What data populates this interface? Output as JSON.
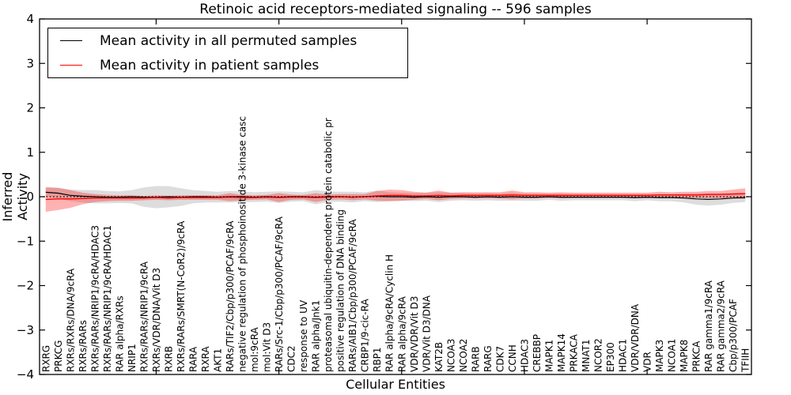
{
  "figure": {
    "title": "Retinoic acid receptors-mediated signaling -- 596 samples",
    "xlabel": "Cellular Entities",
    "ylabel": "Inferred Activity"
  },
  "legend": {
    "position": "upper left",
    "entries": [
      {
        "label": "Mean activity in all permuted samples",
        "color": "#000000"
      },
      {
        "label": "Mean activity in patient samples",
        "color": "#ff0000"
      }
    ]
  },
  "chart_data": {
    "type": "line",
    "title": "Retinoic acid receptors-mediated signaling -- 596 samples",
    "xlabel": "Cellular Entities",
    "ylabel": "Inferred Activity",
    "ylim": [
      -4,
      4
    ],
    "ytick_labels": [
      "4",
      "3",
      "2",
      "1",
      "0",
      "−1",
      "−2",
      "−3",
      "−4"
    ],
    "ytick_values": [
      4,
      3,
      2,
      1,
      0,
      -1,
      -2,
      -3,
      -4
    ],
    "x_major_tick_positions": [
      10,
      20,
      30,
      40,
      50
    ],
    "grid": false,
    "zero_line": true,
    "legend_position": "upper left",
    "categories": [
      "RXRG",
      "PRKCG",
      "RXRs/RXRs/DNA/9cRA",
      "RXRs/RARs",
      "RXRs/RARs/NRIP1/9cRA/HDAC3",
      "RXRs/RARs/NRIP1/9cRA/HDAC1",
      "RAR alpha/RXRs",
      "NRIP1",
      "RXRs/RARs/NRIP1/9cRA",
      "RXRs/VDR/DNA/Vit D3",
      "RXRB",
      "RXRs/RARs/SMRT(N-CoR2)/9cRA",
      "RARA",
      "RXRA",
      "AKT1",
      "RARs/TIF2/Cbp/p300/PCAF/9cRA",
      "negative regulation of phosphoinositide 3-kinase casc",
      "mol:9cRA",
      "mol:Vit D3",
      "RARs/Src-1/Cbp/p300/PCAF/9cRA",
      "CDC2",
      "response to UV",
      "RAR alpha/Jnk1",
      "proteasomal ubiquitin-dependent protein catabolic pr",
      "positive regulation of DNA binding",
      "RARs/AIB1/Cbp/p300/PCAF/9cRA",
      "CRBP1/9-cic-RA",
      "RBP1",
      "RAR alpha/9cRA/Cyclin H",
      "RAR alpha/9cRA",
      "VDR/VDR/Vit D3",
      "VDR/Vit D3/DNA",
      "KAT2B",
      "NCOA3",
      "NCOA2",
      "RARB",
      "RARG",
      "CDK7",
      "CCNH",
      "HDAC3",
      "CREBBP",
      "MAPK1",
      "MAPK14",
      "PRKACA",
      "MNAT1",
      "NCOR2",
      "EP300",
      "HDAC1",
      "VDR/VDR/DNA",
      "VDR",
      "MAPK3",
      "NCOA1",
      "MAPK8",
      "PRKCA",
      "RAR gamma1/9cRA",
      "RAR gamma2/9cRA",
      "Cbp/p300/PCAF",
      "TFIIH"
    ],
    "series": [
      {
        "name": "Mean activity in all permuted samples",
        "color": "#000000",
        "band_color": "rgba(120,120,120,0.25)",
        "values": [
          0.1,
          0.08,
          0.03,
          0.01,
          0.0,
          -0.01,
          -0.01,
          0.0,
          -0.01,
          -0.01,
          0.0,
          -0.01,
          0.0,
          0.0,
          -0.01,
          0.0,
          0.0,
          -0.01,
          0.0,
          -0.01,
          0.0,
          0.0,
          -0.01,
          0.0,
          0.0,
          -0.01,
          0.0,
          0.01,
          0.0,
          0.0,
          -0.01,
          0.0,
          -0.01,
          0.0,
          0.0,
          -0.01,
          0.0,
          -0.01,
          0.0,
          -0.01,
          -0.01,
          0.0,
          -0.01,
          -0.01,
          -0.01,
          -0.01,
          -0.01,
          -0.01,
          -0.02,
          -0.01,
          -0.02,
          -0.02,
          -0.03,
          -0.05,
          -0.06,
          -0.05,
          -0.03,
          -0.02
        ],
        "band_halfwidth": [
          0.1,
          0.12,
          0.13,
          0.14,
          0.15,
          0.14,
          0.13,
          0.15,
          0.22,
          0.25,
          0.24,
          0.2,
          0.15,
          0.13,
          0.12,
          0.13,
          0.12,
          0.11,
          0.11,
          0.13,
          0.11,
          0.1,
          0.16,
          0.12,
          0.11,
          0.12,
          0.1,
          0.13,
          0.1,
          0.09,
          0.09,
          0.09,
          0.11,
          0.09,
          0.08,
          0.08,
          0.08,
          0.08,
          0.09,
          0.08,
          0.08,
          0.07,
          0.08,
          0.07,
          0.07,
          0.07,
          0.07,
          0.07,
          0.08,
          0.07,
          0.08,
          0.08,
          0.1,
          0.13,
          0.14,
          0.13,
          0.11,
          0.1
        ]
      },
      {
        "name": "Mean activity in patient samples",
        "color": "#ff0000",
        "band_color": "rgba(255,0,0,0.30)",
        "values": [
          -0.06,
          -0.05,
          -0.05,
          -0.04,
          -0.03,
          -0.03,
          -0.03,
          -0.03,
          -0.03,
          -0.02,
          -0.03,
          -0.02,
          -0.02,
          -0.02,
          -0.02,
          -0.01,
          -0.02,
          -0.02,
          -0.01,
          -0.02,
          -0.01,
          -0.01,
          -0.02,
          -0.01,
          0.0,
          -0.01,
          0.0,
          0.02,
          0.03,
          0.03,
          0.02,
          0.02,
          0.03,
          0.02,
          0.03,
          0.03,
          0.03,
          0.03,
          0.04,
          0.03,
          0.03,
          0.03,
          0.03,
          0.03,
          0.03,
          0.03,
          0.03,
          0.03,
          0.03,
          0.03,
          0.04,
          0.04,
          0.04,
          0.04,
          0.05,
          0.05,
          0.06,
          0.07
        ],
        "band_halfwidth": [
          0.28,
          0.25,
          0.2,
          0.13,
          0.09,
          0.07,
          0.06,
          0.06,
          0.05,
          0.05,
          0.05,
          0.05,
          0.05,
          0.05,
          0.05,
          0.09,
          0.06,
          0.05,
          0.05,
          0.1,
          0.06,
          0.05,
          0.1,
          0.06,
          0.06,
          0.07,
          0.06,
          0.11,
          0.13,
          0.12,
          0.09,
          0.07,
          0.11,
          0.07,
          0.07,
          0.07,
          0.07,
          0.07,
          0.1,
          0.07,
          0.07,
          0.06,
          0.07,
          0.06,
          0.06,
          0.06,
          0.06,
          0.06,
          0.06,
          0.06,
          0.07,
          0.06,
          0.07,
          0.07,
          0.08,
          0.08,
          0.1,
          0.12
        ]
      }
    ]
  }
}
